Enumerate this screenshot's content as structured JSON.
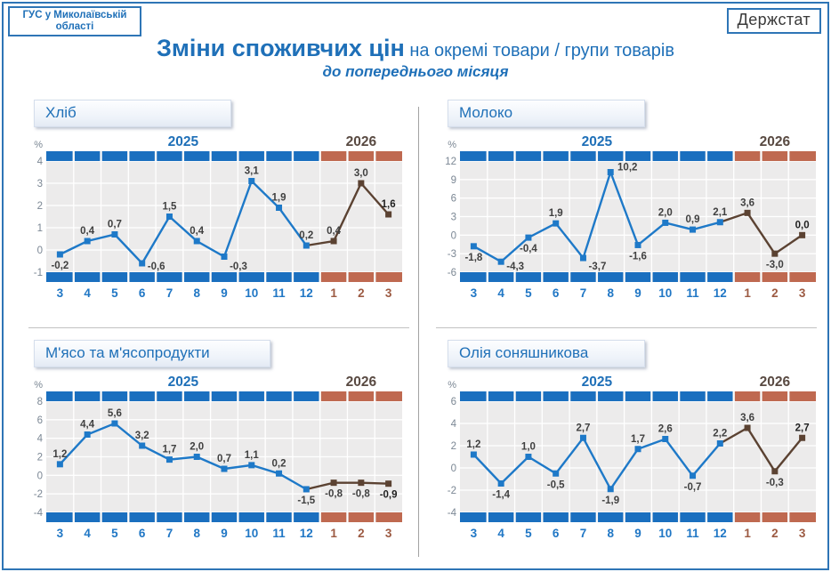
{
  "page": {
    "org_box": "ГУС у Миколаївській області",
    "brand_box": "Держстат",
    "title_main": "Зміни споживчих цін",
    "title_rest": " на окремі товари / групи товарів",
    "subtitle": "до попереднього місяця"
  },
  "colors": {
    "blue": "#1F70B8",
    "blue_bar": "#1A6FBF",
    "blue_line": "#1E79C8",
    "brown_bar": "#BF6950",
    "brown_line": "#5B4232",
    "brown_text": "#594A42",
    "xlabel_blue": "#2077C5",
    "xlabel_brown": "#9C5A42",
    "axis_text": "#7B8794",
    "label_text": "#404040",
    "label_bold": "#1F1F1F",
    "plot_bg": "#ECEBEB",
    "border_blue": "#2E75B6"
  },
  "chart_data": [
    {
      "type": "line",
      "title": "Хліб",
      "ylabel": "%",
      "categories": [
        "3",
        "4",
        "5",
        "6",
        "7",
        "8",
        "9",
        "10",
        "11",
        "12",
        "1",
        "2",
        "3"
      ],
      "year_groups": [
        {
          "label": "2025",
          "count": 10
        },
        {
          "label": "2026",
          "count": 3
        }
      ],
      "values": [
        -0.2,
        0.4,
        0.7,
        -0.6,
        1.5,
        0.4,
        -0.3,
        3.1,
        1.9,
        0.2,
        0.4,
        3.0,
        1.6
      ],
      "ylim": [
        -1,
        4
      ],
      "yticks": [
        4,
        3,
        2,
        1,
        0,
        -1
      ],
      "grid": true,
      "legend": "none",
      "last_value_bold": true
    },
    {
      "type": "line",
      "title": "Молоко",
      "ylabel": "%",
      "categories": [
        "3",
        "4",
        "5",
        "6",
        "7",
        "8",
        "9",
        "10",
        "11",
        "12",
        "1",
        "2",
        "3"
      ],
      "year_groups": [
        {
          "label": "2025",
          "count": 10
        },
        {
          "label": "2026",
          "count": 3
        }
      ],
      "values": [
        -1.8,
        -4.3,
        -0.4,
        1.9,
        -3.7,
        10.2,
        -1.6,
        2.0,
        0.9,
        2.1,
        3.6,
        -3.0,
        0.0
      ],
      "ylim": [
        -6,
        12
      ],
      "yticks": [
        12,
        9,
        6,
        3,
        0,
        -3,
        -6
      ],
      "grid": true,
      "legend": "none",
      "last_value_bold": true
    },
    {
      "type": "line",
      "title": "М'ясо та м'ясопродукти",
      "ylabel": "%",
      "categories": [
        "3",
        "4",
        "5",
        "6",
        "7",
        "8",
        "9",
        "10",
        "11",
        "12",
        "1",
        "2",
        "3"
      ],
      "year_groups": [
        {
          "label": "2025",
          "count": 10
        },
        {
          "label": "2026",
          "count": 3
        }
      ],
      "values": [
        1.2,
        4.4,
        5.6,
        3.2,
        1.7,
        2.0,
        0.7,
        1.1,
        0.2,
        -1.5,
        -0.8,
        -0.8,
        -0.9
      ],
      "ylim": [
        -4,
        8
      ],
      "yticks": [
        8,
        6,
        4,
        2,
        0,
        -2,
        -4
      ],
      "grid": true,
      "legend": "none",
      "last_value_bold": true
    },
    {
      "type": "line",
      "title": "Олія соняшникова",
      "ylabel": "%",
      "categories": [
        "3",
        "4",
        "5",
        "6",
        "7",
        "8",
        "9",
        "10",
        "11",
        "12",
        "1",
        "2",
        "3"
      ],
      "year_groups": [
        {
          "label": "2025",
          "count": 10
        },
        {
          "label": "2026",
          "count": 3
        }
      ],
      "values": [
        1.2,
        -1.4,
        1.0,
        -0.5,
        2.7,
        -1.9,
        1.7,
        2.6,
        -0.7,
        2.2,
        3.6,
        -0.3,
        2.7
      ],
      "ylim": [
        -4,
        6
      ],
      "yticks": [
        6,
        4,
        2,
        0,
        -2,
        -4
      ],
      "grid": true,
      "legend": "none",
      "last_value_bold": true
    }
  ]
}
